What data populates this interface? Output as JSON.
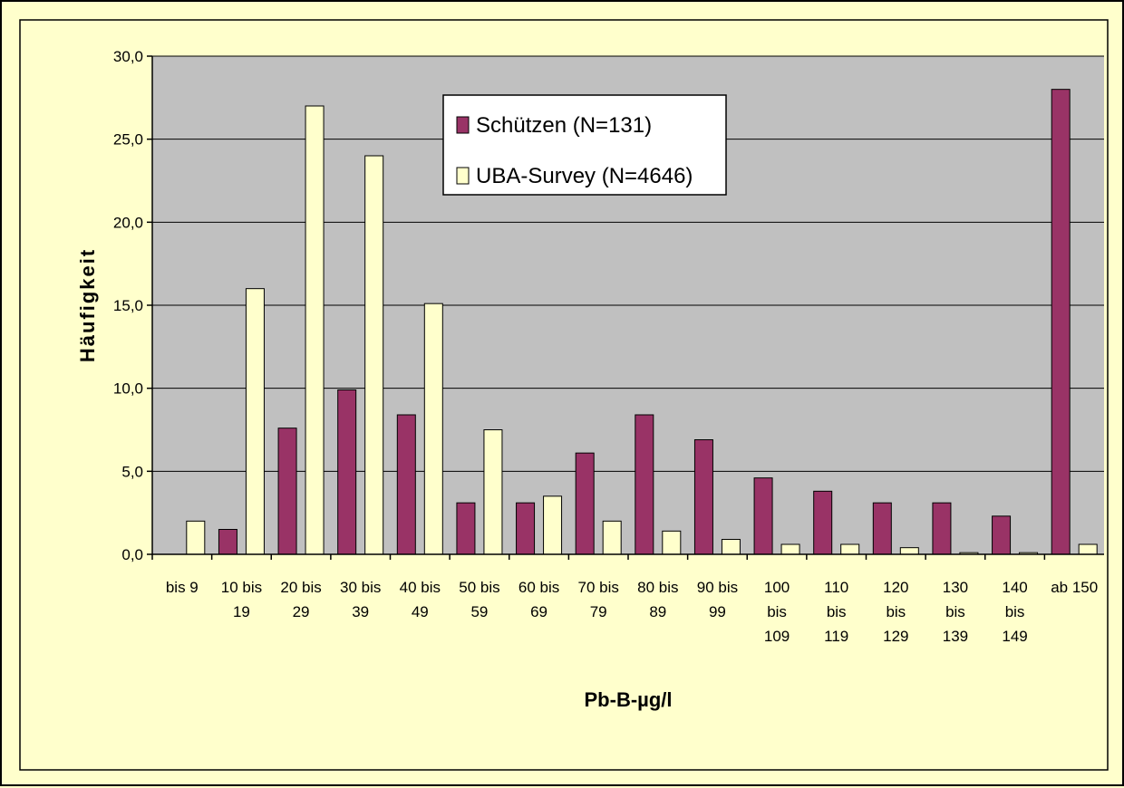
{
  "colors": {
    "page_background": "#ffffcc",
    "plot_background": "#c0c0c0",
    "series_1": "#993366",
    "series_2": "#ffffcc",
    "gridline": "#000000"
  },
  "chart_data": {
    "type": "bar",
    "title": "",
    "xlabel": "Pb-B-µg/l",
    "ylabel": "Häufigkeit",
    "ylim": [
      0,
      30
    ],
    "y_ticks": [
      "0,0",
      "5,0",
      "10,0",
      "15,0",
      "20,0",
      "25,0",
      "30,0"
    ],
    "grid": true,
    "legend_position": "top-center",
    "categories": [
      [
        "bis 9"
      ],
      [
        "10 bis",
        "19"
      ],
      [
        "20 bis",
        "29"
      ],
      [
        "30 bis",
        "39"
      ],
      [
        "40 bis",
        "49"
      ],
      [
        "50 bis",
        "59"
      ],
      [
        "60 bis",
        "69"
      ],
      [
        "70 bis",
        "79"
      ],
      [
        "80 bis",
        "89"
      ],
      [
        "90 bis",
        "99"
      ],
      [
        "100",
        "bis",
        "109"
      ],
      [
        "110",
        "bis",
        "119"
      ],
      [
        "120",
        "bis",
        "129"
      ],
      [
        "130",
        "bis",
        "139"
      ],
      [
        "140",
        "bis",
        "149"
      ],
      [
        "ab 150"
      ]
    ],
    "series": [
      {
        "name": "Schützen (N=131)",
        "values": [
          0,
          1.5,
          7.6,
          9.9,
          8.4,
          3.1,
          3.1,
          6.1,
          8.4,
          6.9,
          4.6,
          3.8,
          3.1,
          3.1,
          2.3,
          28.0
        ]
      },
      {
        "name": "UBA-Survey (N=4646)",
        "values": [
          2.0,
          16.0,
          27.0,
          24.0,
          15.1,
          7.5,
          3.5,
          2.0,
          1.4,
          0.9,
          0.6,
          0.6,
          0.4,
          0.1,
          0.1,
          0.6
        ]
      }
    ]
  }
}
